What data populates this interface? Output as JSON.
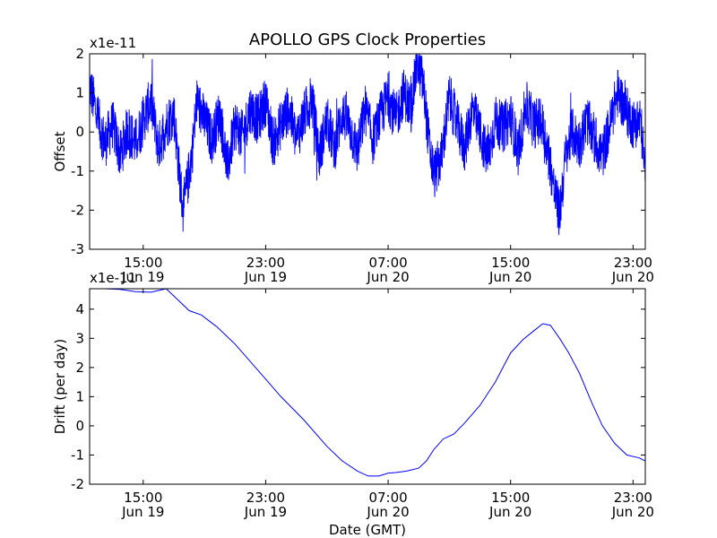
{
  "title": "APOLLO GPS Clock Properties",
  "chart_data": [
    {
      "type": "line",
      "name": "offset",
      "ylabel": "Offset",
      "xlabel": "",
      "ylim": [
        -3,
        2
      ],
      "xlim_hours_from_jun19_00": [
        11.5,
        47.8
      ],
      "yticks": [
        "-3",
        "-2",
        "-1",
        "0",
        "1",
        "2"
      ],
      "y_multiplier": "x1e-11",
      "xticks": [
        {
          "hours": 15,
          "time": "15:00",
          "date": "Jun 19"
        },
        {
          "hours": 23,
          "time": "23:00",
          "date": "Jun 19"
        },
        {
          "hours": 31,
          "time": "07:00",
          "date": "Jun 20"
        },
        {
          "hours": 39,
          "time": "15:00",
          "date": "Jun 20"
        },
        {
          "hours": 47,
          "time": "23:00",
          "date": "Jun 20"
        }
      ],
      "color": "#0000ff",
      "series": [
        {
          "name": "offset",
          "x_hours": [
            11.5,
            12.0,
            12.5,
            13.0,
            13.5,
            14.0,
            14.5,
            15.0,
            15.5,
            16.0,
            16.5,
            17.0,
            17.3,
            17.6,
            17.9,
            18.2,
            18.5,
            19.0,
            19.5,
            20.0,
            20.5,
            21.0,
            21.5,
            22.0,
            22.5,
            23.0,
            23.5,
            24.0,
            24.5,
            25.0,
            25.5,
            26.0,
            26.5,
            27.0,
            27.5,
            28.0,
            28.5,
            29.0,
            29.5,
            30.0,
            30.5,
            31.0,
            31.5,
            32.0,
            32.5,
            32.9,
            33.3,
            33.7,
            34.0,
            34.5,
            35.0,
            35.5,
            36.0,
            36.5,
            37.0,
            37.5,
            38.0,
            38.5,
            39.0,
            39.5,
            40.0,
            40.5,
            41.0,
            41.5,
            41.9,
            42.2,
            42.6,
            43.0,
            43.5,
            44.0,
            44.5,
            45.0,
            45.5,
            46.0,
            46.5,
            47.0,
            47.5,
            47.8
          ],
          "y": [
            1.2,
            0.4,
            -0.3,
            0.2,
            -0.6,
            0.1,
            -0.3,
            0.3,
            0.8,
            -0.4,
            0.2,
            0.5,
            -0.8,
            -2.0,
            -1.3,
            -0.5,
            0.8,
            0.3,
            -0.2,
            0.5,
            -0.9,
            0.2,
            -0.1,
            0.6,
            0.3,
            0.8,
            -0.3,
            0.2,
            0.6,
            -0.2,
            0.4,
            0.9,
            -0.6,
            0.3,
            -0.4,
            0.5,
            0.1,
            -0.5,
            0.6,
            -0.2,
            0.4,
            0.9,
            0.3,
            1.0,
            0.6,
            1.8,
            1.2,
            -0.4,
            -1.1,
            -0.6,
            0.9,
            0.2,
            -0.4,
            0.6,
            0.0,
            -0.7,
            0.3,
            0.1,
            0.4,
            -0.5,
            0.7,
            0.2,
            0.3,
            -0.6,
            -1.6,
            -2.1,
            -0.6,
            0.0,
            -0.3,
            0.3,
            -0.2,
            -0.6,
            0.2,
            1.0,
            0.6,
            0.2,
            0.3,
            -1.2
          ]
        }
      ]
    },
    {
      "type": "line",
      "name": "drift",
      "ylabel": "Drift (per day)",
      "xlabel": "Date (GMT)",
      "ylim": [
        -2,
        4.7
      ],
      "xlim_hours_from_jun19_00": [
        11.5,
        47.8
      ],
      "yticks": [
        "-2",
        "-1",
        "0",
        "1",
        "2",
        "3",
        "4"
      ],
      "y_multiplier": "x1e-11",
      "xticks": [
        {
          "hours": 15,
          "time": "15:00",
          "date": "Jun 19"
        },
        {
          "hours": 23,
          "time": "23:00",
          "date": "Jun 19"
        },
        {
          "hours": 31,
          "time": "07:00",
          "date": "Jun 20"
        },
        {
          "hours": 39,
          "time": "15:00",
          "date": "Jun 20"
        },
        {
          "hours": 47,
          "time": "23:00",
          "date": "Jun 20"
        }
      ],
      "color": "#0000ff",
      "series": [
        {
          "name": "drift",
          "x_hours": [
            11.5,
            12.5,
            13.5,
            14.5,
            15.5,
            16.5,
            17.2,
            18.0,
            18.8,
            19.8,
            21.0,
            22.5,
            24.0,
            25.5,
            27.0,
            28.0,
            29.0,
            29.7,
            30.4,
            31.0,
            31.5,
            32.2,
            33.0,
            33.5,
            34.0,
            34.6,
            35.3,
            36.0,
            37.0,
            38.0,
            39.0,
            39.8,
            40.5,
            41.1,
            41.6,
            42.2,
            42.8,
            43.5,
            44.3,
            45.0,
            45.8,
            46.6,
            47.4,
            47.8
          ],
          "y": [
            4.72,
            4.7,
            4.68,
            4.6,
            4.58,
            4.7,
            4.35,
            3.95,
            3.8,
            3.4,
            2.8,
            1.9,
            1.0,
            0.2,
            -0.7,
            -1.2,
            -1.55,
            -1.72,
            -1.72,
            -1.62,
            -1.6,
            -1.55,
            -1.45,
            -1.2,
            -0.8,
            -0.45,
            -0.28,
            0.1,
            0.7,
            1.5,
            2.5,
            2.95,
            3.25,
            3.5,
            3.45,
            3.0,
            2.5,
            1.8,
            0.8,
            0.0,
            -0.6,
            -1.0,
            -1.1,
            -1.2
          ]
        }
      ]
    }
  ]
}
